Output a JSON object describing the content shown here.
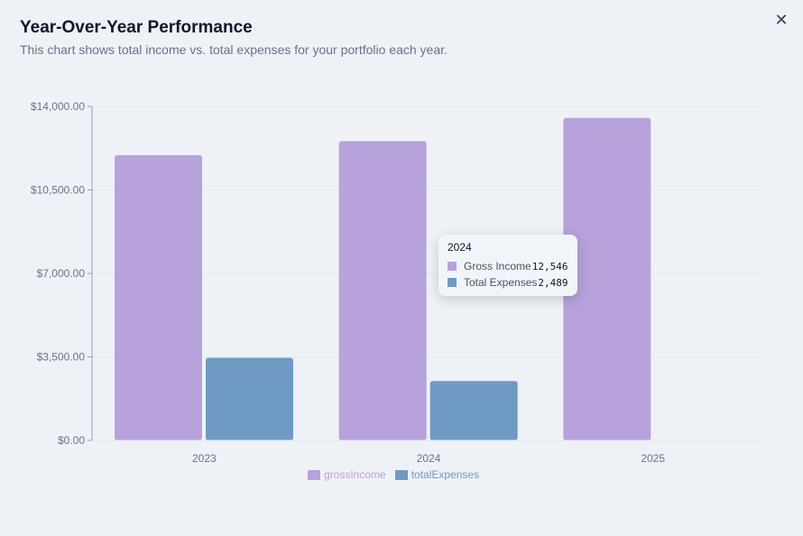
{
  "header": {
    "title": "Year-Over-Year Performance",
    "subtitle": "This chart shows total income vs. total expenses for your portfolio each year."
  },
  "close_icon": "close-icon",
  "colors": {
    "grossIncome": "#b7a2dc",
    "totalExpenses": "#6e9ac4",
    "axis": "#94a3b8",
    "grid": "#e2e8f0",
    "tick_text": "#64748b"
  },
  "chart_data": {
    "type": "bar",
    "categories": [
      "2023",
      "2024",
      "2025"
    ],
    "series": [
      {
        "name": "grossIncome",
        "values": [
          11960,
          12546,
          13520
        ]
      },
      {
        "name": "totalExpenses",
        "values": [
          3460,
          2489,
          0
        ]
      }
    ],
    "ylim": [
      0,
      14000
    ],
    "yticks": [
      0,
      3500,
      7000,
      10500,
      14000
    ],
    "ytick_labels": [
      "$0.00",
      "$3,500.00",
      "$7,000.00",
      "$10,500.00",
      "$14,000.00"
    ],
    "grid": true,
    "legend_position": "bottom-center"
  },
  "legend": {
    "items": [
      {
        "label": "grossIncome",
        "color": "#b7a2dc"
      },
      {
        "label": "totalExpenses",
        "color": "#6e9ac4"
      }
    ]
  },
  "tooltip": {
    "title": "2024",
    "rows": [
      {
        "label": "Gross Income",
        "value": "12,546",
        "color": "#b7a2dc"
      },
      {
        "label": "Total Expenses",
        "value": "2,489",
        "color": "#6e9ac4"
      }
    ]
  }
}
